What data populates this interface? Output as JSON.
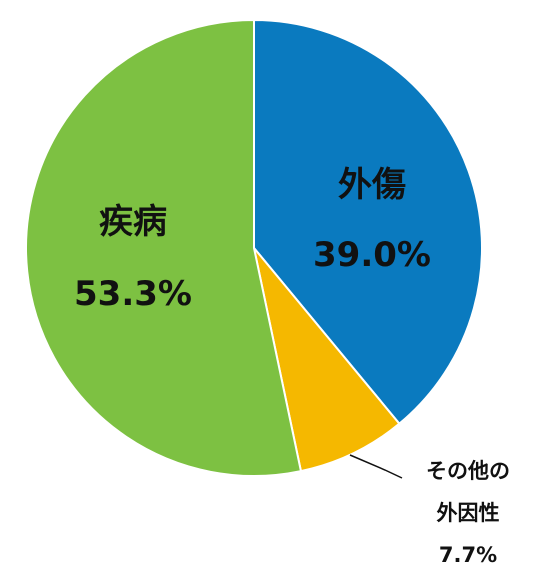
{
  "chart_data": {
    "type": "pie",
    "title": "",
    "slices": [
      {
        "label": "外傷",
        "value": 39.0,
        "value_text": "39.0%",
        "color": "#0a7abf"
      },
      {
        "label": "その他の外因性",
        "label_lines": [
          "その他の",
          "外因性"
        ],
        "value": 7.7,
        "value_text": "7.7%",
        "color": "#f5b800"
      },
      {
        "label": "疾病",
        "value": 53.3,
        "value_text": "53.3%",
        "color": "#7dc142"
      }
    ],
    "start": "top (12 o'clock)",
    "direction": "clockwise",
    "slice_border": "#ffffff",
    "legend": "none"
  }
}
